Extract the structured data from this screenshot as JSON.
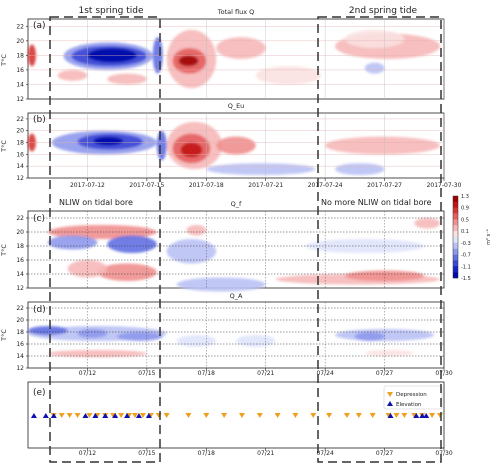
{
  "figure": {
    "annotations": {
      "spring1": "1st spring tide",
      "spring2": "2nd spring tide",
      "nliw": "NLIW on tidal bore",
      "no_nliw": "No more NLIW on tidal bore"
    },
    "colorbar": {
      "ticks": [
        "1.3",
        "0.9",
        "0.5",
        "0.1",
        "-0.3",
        "-0.7",
        "-1.1",
        "-1.5"
      ],
      "unit": "m² s⁻¹",
      "colors_pos": [
        "#fbe1e1",
        "#f6b8b8",
        "#ef8f8f",
        "#e46060",
        "#d83434",
        "#c21414",
        "#a00000"
      ],
      "colors_neg": [
        "#e0e4fb",
        "#b9c1f4",
        "#8f99ec",
        "#6370e2",
        "#3a48d6",
        "#1422c8",
        "#0008a8"
      ]
    },
    "xaxis_full": [
      "2017-07-12",
      "2017-07-15",
      "2017-07-18",
      "2017-07-21",
      "2017-07-24",
      "2017-07-27",
      "2017-07-30"
    ],
    "xaxis_short": [
      "07/12",
      "07/15",
      "07/18",
      "07/21",
      "07/24",
      "07/27",
      "07/30"
    ],
    "legend": {
      "depression": "Depression",
      "elevation": "Elevation"
    },
    "colors": {
      "depression": "#f0a020",
      "elevation": "#1010b0"
    }
  },
  "chart_data": [
    {
      "type": "heatmap",
      "panel": "(a)",
      "title": "Total flux Q",
      "ylabel": "T°C",
      "ylim": [
        12,
        23
      ],
      "yticks": [
        12,
        14,
        16,
        18,
        20,
        22
      ],
      "xlim": [
        "2017-07-09",
        "2017-07-30"
      ]
    },
    {
      "type": "heatmap",
      "panel": "(b)",
      "title": "Q_Eu",
      "ylabel": "T°C",
      "ylim": [
        12,
        23
      ],
      "yticks": [
        12,
        14,
        16,
        18,
        20,
        22
      ]
    },
    {
      "type": "heatmap",
      "panel": "(c)",
      "title": "Q_f",
      "ylabel": "T°C",
      "ylim": [
        12,
        23
      ],
      "yticks": [
        12,
        14,
        16,
        18,
        20,
        22
      ]
    },
    {
      "type": "heatmap",
      "panel": "(d)",
      "title": "Q_A",
      "ylabel": "T°C",
      "ylim": [
        12,
        23
      ],
      "yticks": [
        12,
        14,
        16,
        18,
        20,
        22
      ]
    },
    {
      "type": "scatter",
      "panel": "(e)",
      "series": [
        {
          "name": "Depression",
          "x": [
            10.3,
            10.7,
            11.1,
            11.5,
            12.1,
            12.5,
            12.9,
            13.3,
            13.7,
            14.1,
            14.4,
            14.8,
            15.2,
            15.6,
            16.0,
            17.1,
            18.0,
            18.9,
            19.8,
            20.7,
            21.6,
            22.5,
            23.4,
            24.2,
            25.1,
            25.7,
            26.4,
            27.2,
            27.6,
            28.0,
            28.5,
            28.9,
            29.4,
            29.8
          ]
        },
        {
          "name": "Elevation",
          "x": [
            9.3,
            9.9,
            10.3,
            11.9,
            12.4,
            12.9,
            13.4,
            14.0,
            14.6,
            15.1,
            27.3,
            28.6,
            28.9,
            29.1
          ]
        }
      ]
    }
  ]
}
